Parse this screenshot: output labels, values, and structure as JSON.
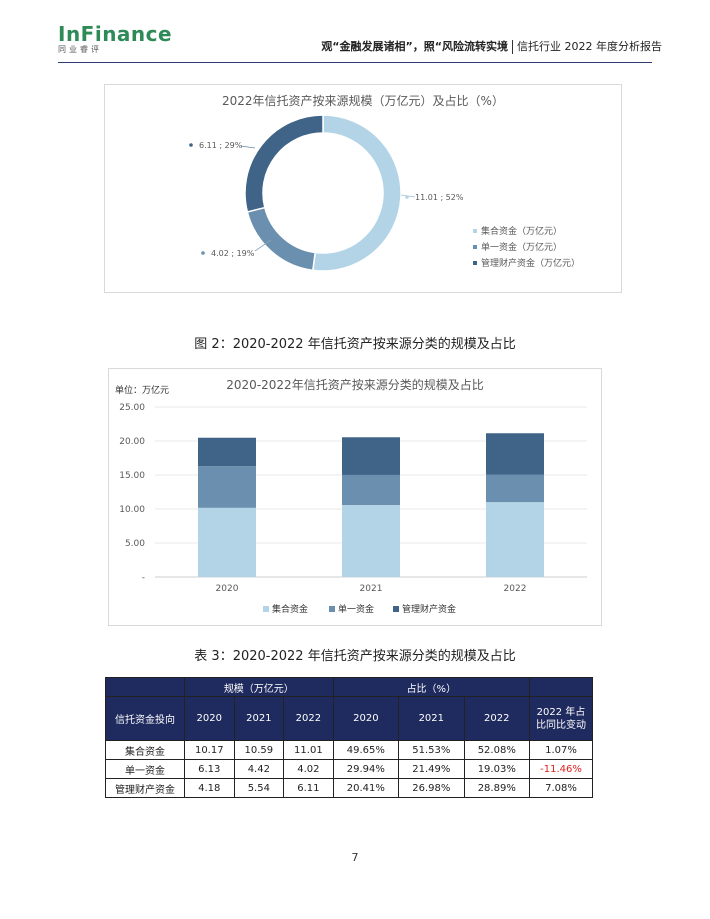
{
  "header": {
    "logo_main": "InFinance",
    "logo_sub": "同业睿评",
    "title_bold": "观“金融发展诸相”，照“风险流转实境",
    "title_rest": "信托行业 2022 年度分析报告"
  },
  "pie": {
    "title": "2022年信托资产按来源规模（万亿元）及占比（%）",
    "legend": [
      "集合资金（万亿元）",
      "单一资金（万亿元）",
      "管理财产资金（万亿元）"
    ],
    "labels": [
      "11.01 ; 52%",
      "4.02 ; 19%",
      "6.11 ; 29%"
    ]
  },
  "figure2_caption": "图 2：2020-2022 年信托资产按来源分类的规模及占比",
  "bar": {
    "title": "2020-2022年信托资产按来源分类的规模及占比",
    "unit": "单位：万亿元",
    "legend": [
      "集合资金",
      "单一资金",
      "管理财产资金"
    ]
  },
  "table3_caption": "表 3：2020-2022 年信托资产按来源分类的规模及占比",
  "table": {
    "group_scale": "规模（万亿元）",
    "group_ratio": "占比（%）",
    "col_direction": "信托资金投向",
    "years": [
      "2020",
      "2021",
      "2022"
    ],
    "col_change": "2022 年占比同比变动",
    "rows": [
      {
        "name": "集合资金",
        "scale": [
          "10.17",
          "10.59",
          "11.01"
        ],
        "ratio": [
          "49.65%",
          "51.53%",
          "52.08%"
        ],
        "change": "1.07%"
      },
      {
        "name": "单一资金",
        "scale": [
          "6.13",
          "4.42",
          "4.02"
        ],
        "ratio": [
          "29.94%",
          "21.49%",
          "19.03%"
        ],
        "change": "-11.46%"
      },
      {
        "name": "管理财产资金",
        "scale": [
          "4.18",
          "5.54",
          "6.11"
        ],
        "ratio": [
          "20.41%",
          "26.98%",
          "28.89%"
        ],
        "change": "7.08%"
      }
    ]
  },
  "page_number": "7",
  "colors": {
    "collective": "#b3d4e6",
    "single": "#6b8fae",
    "managed": "#3f6488",
    "header_bg": "#1f2a5e",
    "negative": "#e02020"
  },
  "chart_data": [
    {
      "type": "pie",
      "title": "2022年信托资产按来源规模（万亿元）及占比（%）",
      "categories": [
        "集合资金（万亿元）",
        "单一资金（万亿元）",
        "管理财产资金（万亿元）"
      ],
      "values": [
        11.01,
        4.02,
        6.11
      ],
      "percent": [
        52,
        19,
        29
      ],
      "donut": true,
      "legend": "right"
    },
    {
      "type": "bar",
      "stacked": true,
      "title": "2020-2022年信托资产按来源分类的规模及占比",
      "ylabel": "单位：万亿元",
      "categories": [
        "2020",
        "2021",
        "2022"
      ],
      "series": [
        {
          "name": "集合资金",
          "values": [
            10.17,
            10.59,
            11.01
          ]
        },
        {
          "name": "单一资金",
          "values": [
            6.13,
            4.42,
            4.02
          ]
        },
        {
          "name": "管理财产资金",
          "values": [
            4.18,
            5.54,
            6.11
          ]
        }
      ],
      "yticks": [
        "-",
        "5.00",
        "10.00",
        "15.00",
        "20.00",
        "25.00"
      ],
      "ylim": [
        0,
        25
      ],
      "grid": true,
      "legend": "bottom"
    }
  ]
}
